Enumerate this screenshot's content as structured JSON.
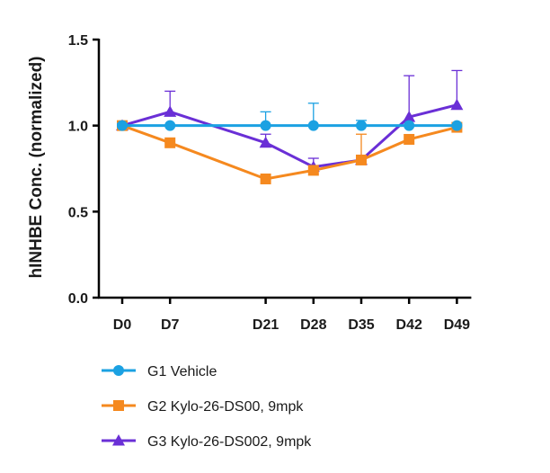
{
  "chart_data": {
    "type": "line",
    "title": "",
    "xlabel": "",
    "ylabel": "hINHBE Conc. (normalized)",
    "ylim": [
      0,
      1.5
    ],
    "yticks": [
      0.0,
      0.5,
      1.0,
      1.5
    ],
    "ytick_labels": [
      "0.0",
      "0.5",
      "1.0",
      "1.5"
    ],
    "x": [
      0,
      7,
      21,
      28,
      35,
      42,
      49
    ],
    "categories": [
      "D0",
      "D7",
      "D21",
      "D28",
      "D35",
      "D42",
      "D49"
    ],
    "legend_position": "bottom",
    "series": [
      {
        "name": "G1 Vehicle",
        "color": "#1ba1e2",
        "marker": "circle",
        "values": [
          1.0,
          1.0,
          1.0,
          1.0,
          1.0,
          1.0,
          1.0
        ],
        "error": [
          0.01,
          0.0,
          0.08,
          0.13,
          0.03,
          0.0,
          0.0
        ]
      },
      {
        "name": "G2 Kylo-26-DS00, 9mpk",
        "color": "#f5891f",
        "marker": "square",
        "values": [
          1.0,
          0.9,
          0.69,
          0.74,
          0.8,
          0.92,
          0.99
        ],
        "error": [
          0.0,
          0.0,
          0.0,
          0.0,
          0.15,
          0.0,
          0.0
        ]
      },
      {
        "name": "G3 Kylo-26-DS002, 9mpk",
        "color": "#6a2fd6",
        "marker": "triangle",
        "values": [
          1.0,
          1.08,
          0.9,
          0.76,
          0.8,
          1.05,
          1.12
        ],
        "error": [
          0.0,
          0.12,
          0.05,
          0.05,
          0.0,
          0.24,
          0.2
        ]
      }
    ]
  }
}
